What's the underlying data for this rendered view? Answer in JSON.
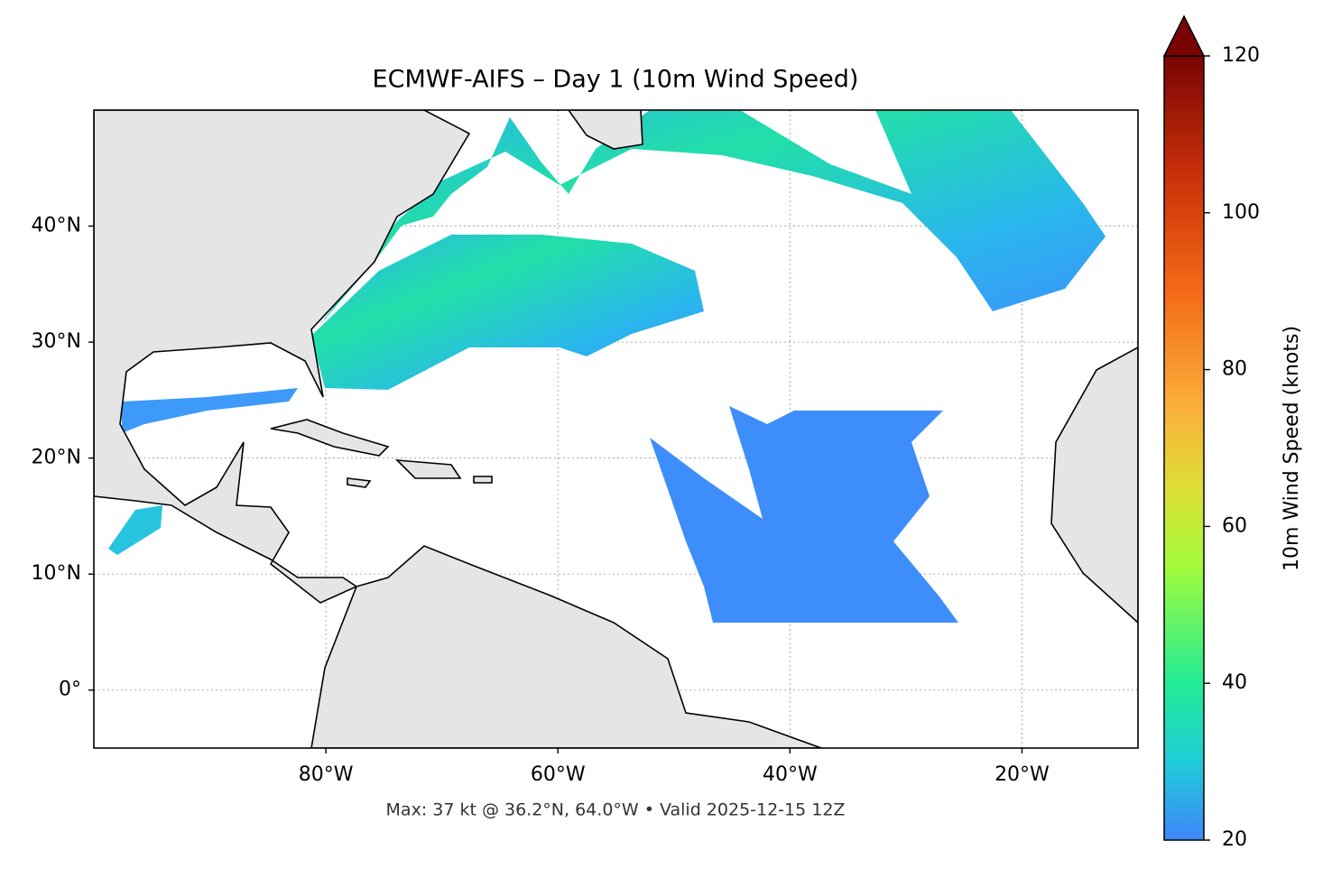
{
  "chart_data": {
    "type": "map",
    "title": "ECMWF-AIFS – Day 1 (10m Wind Speed)",
    "annotation": "Max: 37 kt @ 36.2°N, 64.0°W • Valid 2025-12-15 12Z",
    "xlim": [
      -100,
      -10
    ],
    "ylim": [
      -5,
      50
    ],
    "xticks": [
      {
        "value": -80,
        "label": "80°W"
      },
      {
        "value": -60,
        "label": "60°W"
      },
      {
        "value": -40,
        "label": "40°W"
      },
      {
        "value": -20,
        "label": "20°W"
      }
    ],
    "yticks": [
      {
        "value": 0,
        "label": "0°"
      },
      {
        "value": 10,
        "label": "10°N"
      },
      {
        "value": 20,
        "label": "20°N"
      },
      {
        "value": 30,
        "label": "30°N"
      },
      {
        "value": 40,
        "label": "40°N"
      }
    ],
    "grid": true,
    "colorbar": {
      "label": "10m Wind Speed (knots)",
      "lim": [
        20,
        120
      ],
      "ticks": [
        20,
        40,
        60,
        80,
        100,
        120
      ]
    }
  }
}
